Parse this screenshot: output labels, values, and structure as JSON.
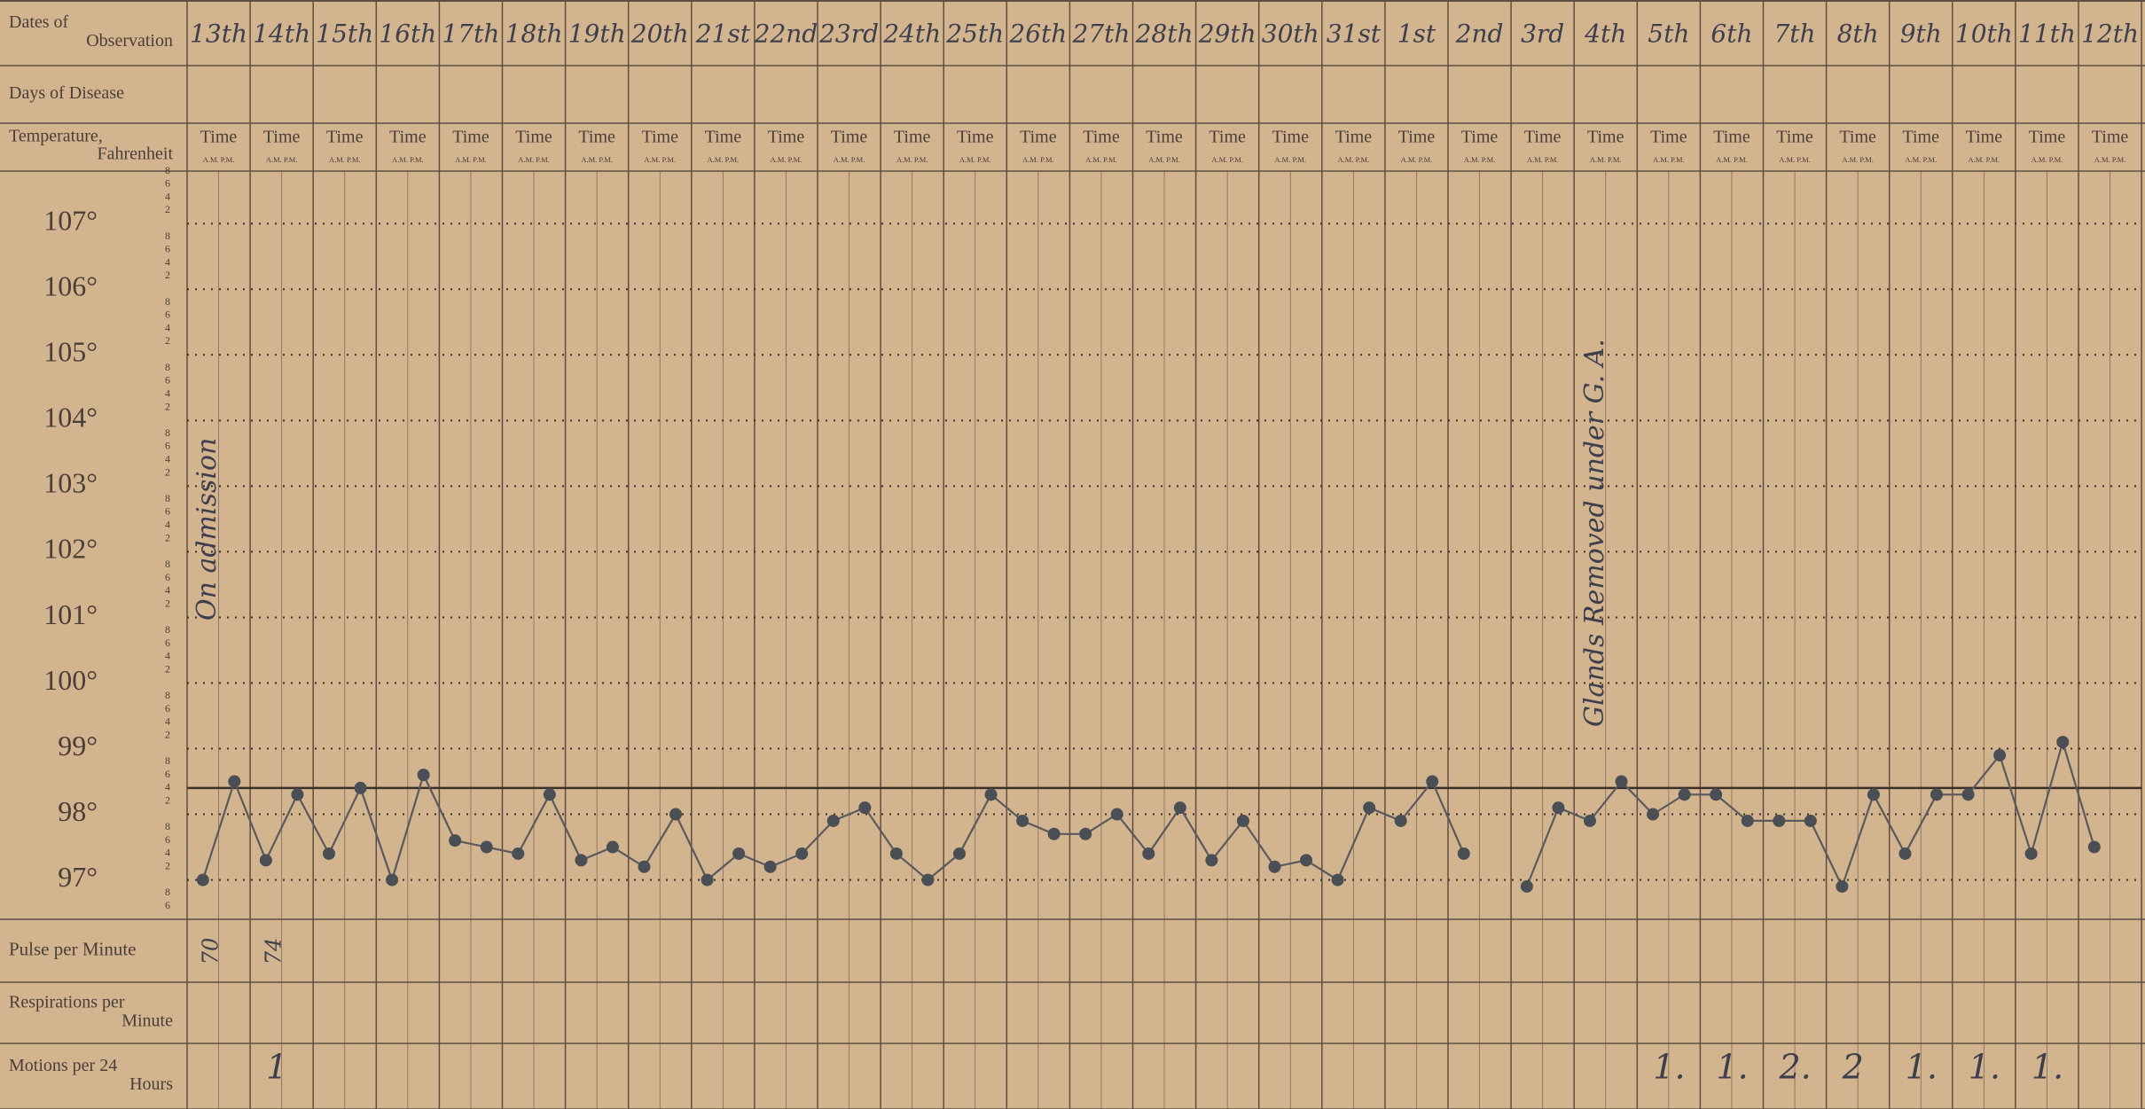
{
  "chart_data": {
    "type": "line",
    "row_labels": {
      "dates": [
        "Dates of",
        "Observation"
      ],
      "days": [
        "Days of Disease"
      ],
      "temperature": [
        "Temperature,",
        "Fahrenheit"
      ],
      "pulse": [
        "Pulse per Minute"
      ],
      "respirations": [
        "Respirations per",
        "Minute"
      ],
      "motions": [
        "Motions per 24",
        "Hours"
      ]
    },
    "time_label": "Time",
    "ampm_label": "A.M. P.M.",
    "categories": [
      "13th",
      "14th",
      "15th",
      "16th",
      "17th",
      "18th",
      "19th",
      "20th",
      "21st",
      "22nd",
      "23rd",
      "24th",
      "25th",
      "26th",
      "27th",
      "28th",
      "29th",
      "30th",
      "31st",
      "1st",
      "2nd",
      "3rd",
      "4th",
      "5th",
      "6th",
      "7th",
      "8th",
      "9th",
      "10th",
      "11th",
      "12th"
    ],
    "series": [
      {
        "name": "A.M.",
        "color": "#4a4e55",
        "values": [
          97.0,
          97.3,
          97.4,
          97.0,
          97.6,
          97.4,
          97.3,
          97.2,
          97.0,
          97.2,
          97.9,
          97.4,
          97.4,
          97.9,
          97.7,
          97.4,
          97.3,
          97.2,
          97.0,
          97.9,
          97.4,
          96.9,
          97.9,
          98.0,
          98.3,
          97.9,
          96.9,
          97.4,
          98.3,
          97.4,
          97.5
        ]
      },
      {
        "name": "P.M.",
        "color": "#4a4e55",
        "values": [
          98.5,
          98.3,
          98.4,
          98.6,
          97.5,
          98.3,
          97.5,
          98.0,
          97.4,
          97.4,
          98.1,
          97.0,
          98.3,
          97.7,
          98.0,
          98.1,
          97.9,
          97.3,
          98.1,
          98.5,
          null,
          98.1,
          98.5,
          98.3,
          97.9,
          97.9,
          98.3,
          98.3,
          98.9,
          99.1,
          null
        ]
      }
    ],
    "ylim": [
      96.4,
      107.8
    ],
    "yticks": [
      {
        "value": 97,
        "label": "97°"
      },
      {
        "value": 98,
        "label": "98°"
      },
      {
        "value": 99,
        "label": "99°"
      },
      {
        "value": 100,
        "label": "100°"
      },
      {
        "value": 101,
        "label": "101°"
      },
      {
        "value": 102,
        "label": "102°"
      },
      {
        "value": 103,
        "label": "103°"
      },
      {
        "value": 104,
        "label": "104°"
      },
      {
        "value": 105,
        "label": "105°"
      },
      {
        "value": 106,
        "label": "106°"
      },
      {
        "value": 107,
        "label": "107°"
      }
    ],
    "minor_yticks": [
      {
        "value": 107.8,
        "label": "8"
      },
      {
        "value": 107.6,
        "label": "6"
      },
      {
        "value": 107.4,
        "label": "4"
      },
      {
        "value": 107.2,
        "label": "2"
      },
      {
        "value": 106.8,
        "label": "8"
      },
      {
        "value": 106.6,
        "label": "6"
      },
      {
        "value": 106.4,
        "label": "4"
      },
      {
        "value": 106.2,
        "label": "2"
      },
      {
        "value": 105.8,
        "label": "8"
      },
      {
        "value": 105.6,
        "label": "6"
      },
      {
        "value": 105.4,
        "label": "4"
      },
      {
        "value": 105.2,
        "label": "2"
      },
      {
        "value": 104.8,
        "label": "8"
      },
      {
        "value": 104.6,
        "label": "6"
      },
      {
        "value": 104.4,
        "label": "4"
      },
      {
        "value": 104.2,
        "label": "2"
      },
      {
        "value": 103.8,
        "label": "8"
      },
      {
        "value": 103.6,
        "label": "6"
      },
      {
        "value": 103.4,
        "label": "4"
      },
      {
        "value": 103.2,
        "label": "2"
      },
      {
        "value": 102.8,
        "label": "8"
      },
      {
        "value": 102.6,
        "label": "6"
      },
      {
        "value": 102.4,
        "label": "4"
      },
      {
        "value": 102.2,
        "label": "2"
      },
      {
        "value": 101.8,
        "label": "8"
      },
      {
        "value": 101.6,
        "label": "6"
      },
      {
        "value": 101.4,
        "label": "4"
      },
      {
        "value": 101.2,
        "label": "2"
      },
      {
        "value": 100.8,
        "label": "8"
      },
      {
        "value": 100.6,
        "label": "6"
      },
      {
        "value": 100.4,
        "label": "4"
      },
      {
        "value": 100.2,
        "label": "2"
      },
      {
        "value": 99.8,
        "label": "8"
      },
      {
        "value": 99.6,
        "label": "6"
      },
      {
        "value": 99.4,
        "label": "4"
      },
      {
        "value": 99.2,
        "label": "2"
      },
      {
        "value": 98.8,
        "label": "8"
      },
      {
        "value": 98.6,
        "label": "6"
      },
      {
        "value": 98.4,
        "label": "4"
      },
      {
        "value": 98.2,
        "label": "2"
      },
      {
        "value": 97.8,
        "label": "8"
      },
      {
        "value": 97.6,
        "label": "6"
      },
      {
        "value": 97.4,
        "label": "4"
      },
      {
        "value": 97.2,
        "label": "2"
      },
      {
        "value": 96.8,
        "label": "8"
      },
      {
        "value": 96.6,
        "label": "6"
      }
    ],
    "normal_line": 98.4,
    "grid": true,
    "pulse": {
      "values": [
        70,
        74,
        null,
        null,
        null,
        null,
        null,
        null,
        null,
        null,
        null,
        null,
        null,
        null,
        null,
        null,
        null,
        null,
        null,
        null,
        null,
        null,
        null,
        null,
        null,
        null,
        null,
        null,
        null,
        null,
        null
      ]
    },
    "motions": {
      "values": [
        null,
        1,
        null,
        null,
        null,
        null,
        null,
        null,
        null,
        null,
        null,
        null,
        null,
        null,
        null,
        null,
        null,
        null,
        null,
        null,
        null,
        null,
        null,
        1,
        1,
        2,
        2,
        1,
        1,
        1,
        null
      ],
      "value_labels": [
        null,
        "1",
        null,
        null,
        null,
        null,
        null,
        null,
        null,
        null,
        null,
        null,
        null,
        null,
        null,
        null,
        null,
        null,
        null,
        null,
        null,
        null,
        null,
        "1.",
        "1.",
        "2.",
        "2",
        "1.",
        "1.",
        "1.",
        null
      ]
    },
    "annotations": [
      "On admission",
      "Glands Removed under G. A."
    ]
  }
}
